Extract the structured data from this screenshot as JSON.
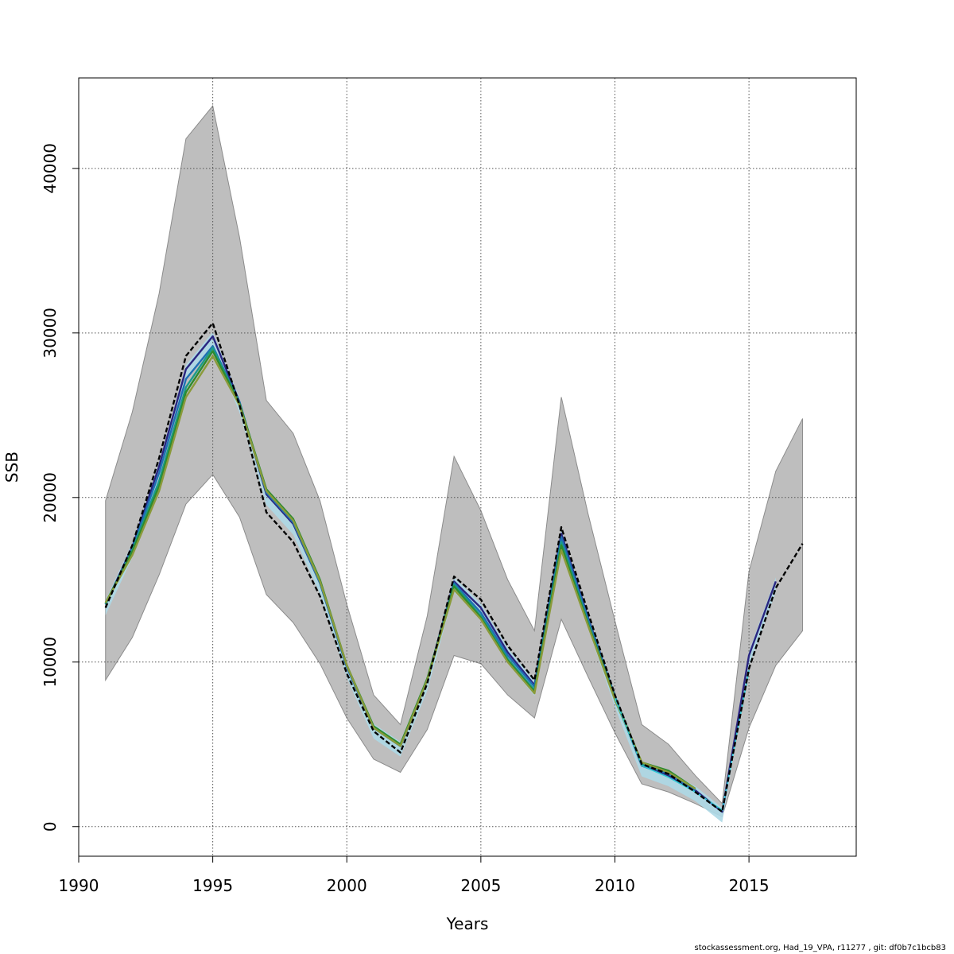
{
  "footer": "stockassessment.org, Had_19_VPA, r11277 , git: df0b7c1bcb83",
  "chart_data": {
    "type": "line",
    "xlabel": "Years",
    "ylabel": "SSB",
    "xlim": [
      1990,
      2019
    ],
    "ylim": [
      -1800,
      45500
    ],
    "x_ticks": [
      1990,
      1995,
      2000,
      2005,
      2010,
      2015
    ],
    "y_ticks": [
      0,
      10000,
      20000,
      30000,
      40000
    ],
    "grid": true,
    "colors": {
      "band": "#bebebe",
      "band_edge": "#8c8c8c",
      "inner_band": "#add8e6",
      "grid": "#555555"
    },
    "band_x": [
      1991,
      1992,
      1993,
      1994,
      1995,
      1996,
      1997,
      1998,
      1999,
      2000,
      2001,
      2002,
      2003,
      2004,
      2005,
      2006,
      2007,
      2008,
      2009,
      2010,
      2011,
      2012,
      2013,
      2014,
      2015,
      2016,
      2017
    ],
    "band_upper": [
      19800,
      25200,
      32400,
      41800,
      43800,
      35800,
      25900,
      23900,
      19800,
      13500,
      8000,
      6200,
      12800,
      22500,
      19200,
      15000,
      11900,
      26100,
      19000,
      12500,
      6200,
      5000,
      3100,
      1400,
      15500,
      21600,
      24800
    ],
    "band_lower": [
      8900,
      11500,
      15300,
      19600,
      21400,
      18800,
      14100,
      12400,
      9900,
      6600,
      4100,
      3300,
      5900,
      10400,
      9900,
      8000,
      6600,
      12600,
      9100,
      5700,
      2600,
      2100,
      1400,
      600,
      6000,
      9800,
      11900
    ],
    "series": [
      {
        "color": "#000000",
        "dashed": true,
        "width": 2.4,
        "x": [
          1991,
          1992,
          1993,
          1994,
          1995,
          1996,
          1997,
          1998,
          1999,
          2000,
          2001,
          2002,
          2003,
          2004,
          2005,
          2006,
          2007,
          2008,
          2009,
          2010,
          2011,
          2012,
          2013,
          2014,
          2015,
          2016,
          2017
        ],
        "values": [
          13300,
          17100,
          22400,
          28600,
          30600,
          25600,
          19100,
          17300,
          14000,
          9300,
          5800,
          4500,
          8700,
          15200,
          13800,
          11000,
          8900,
          18200,
          13000,
          8000,
          3800,
          3200,
          2100,
          900,
          9600,
          14500,
          17200
        ]
      },
      {
        "color": "#2a2580",
        "dashed": false,
        "width": 2.4,
        "x": [
          1991,
          1992,
          1993,
          1994,
          1995,
          1996,
          1997,
          1998,
          1999,
          2000,
          2001,
          2002,
          2003,
          2004,
          2005,
          2006,
          2007,
          2008,
          2009,
          2010,
          2011,
          2012,
          2013,
          2014,
          2015,
          2016
        ],
        "values": [
          13500,
          17000,
          21900,
          27800,
          29800,
          25800,
          20200,
          18400,
          14800,
          9700,
          6000,
          4900,
          8900,
          14900,
          13300,
          10600,
          8600,
          17800,
          12700,
          7900,
          3700,
          3100,
          2200,
          900,
          10400,
          14900
        ]
      },
      {
        "color": "#1f6fb4",
        "dashed": false,
        "width": 2.4,
        "x": [
          1991,
          1992,
          1993,
          1994,
          1995,
          1996,
          1997,
          1998,
          1999,
          2000,
          2001,
          2002,
          2003,
          2004,
          2005,
          2006,
          2007,
          2008,
          2009,
          2010,
          2011,
          2012,
          2013
        ],
        "values": [
          13500,
          16900,
          21500,
          27200,
          29200,
          25800,
          20300,
          18500,
          14800,
          9700,
          6000,
          4900,
          8900,
          14800,
          13000,
          10400,
          8500,
          17600,
          12600,
          7900,
          3800,
          3200,
          2200
        ]
      },
      {
        "color": "#1a9a8a",
        "dashed": false,
        "width": 2.4,
        "x": [
          1991,
          1992,
          1993,
          1994,
          1995,
          1996,
          1997,
          1998,
          1999,
          2000,
          2001,
          2002,
          2003,
          2004,
          2005,
          2006,
          2007,
          2008,
          2009,
          2010,
          2011,
          2012,
          2013
        ],
        "values": [
          13500,
          16800,
          21000,
          26700,
          29100,
          25700,
          20400,
          18600,
          14900,
          9800,
          6000,
          4900,
          8900,
          14700,
          12800,
          10200,
          8300,
          17300,
          12400,
          7800,
          3800,
          3300,
          2300
        ]
      },
      {
        "color": "#2e8b2e",
        "dashed": false,
        "width": 2.4,
        "x": [
          1991,
          1992,
          1993,
          1994,
          1995,
          1996,
          1997,
          1998,
          1999,
          2000,
          2001,
          2002,
          2003,
          2004,
          2005,
          2006,
          2007,
          2008,
          2009,
          2010,
          2011,
          2012,
          2013
        ],
        "values": [
          13600,
          16700,
          20700,
          26400,
          28900,
          25700,
          20500,
          18700,
          15000,
          9800,
          6100,
          5000,
          9000,
          14600,
          12700,
          10100,
          8200,
          17100,
          12300,
          7800,
          3900,
          3400,
          2300
        ]
      },
      {
        "color": "#8a9a3a",
        "dashed": false,
        "width": 2.4,
        "x": [
          1991,
          1992,
          1993,
          1994,
          1995,
          1996,
          1997,
          1998,
          1999,
          2000,
          2001,
          2002,
          2003,
          2004,
          2005,
          2006,
          2007,
          2008,
          2009,
          2010,
          2011,
          2012,
          2013
        ],
        "values": [
          13600,
          16500,
          20400,
          26100,
          28600,
          25600,
          20400,
          18600,
          14900,
          9800,
          6000,
          4900,
          8900,
          14400,
          12600,
          10000,
          8100,
          16800,
          12200,
          7700,
          3900,
          3300,
          2300
        ]
      },
      {
        "color": "#2ec8d4",
        "dashed": false,
        "width": 1.6,
        "x": [
          2010,
          2011,
          2012,
          2013,
          2014,
          2015
        ],
        "values": [
          7800,
          3700,
          3000,
          2100,
          1000,
          9500
        ]
      }
    ]
  }
}
